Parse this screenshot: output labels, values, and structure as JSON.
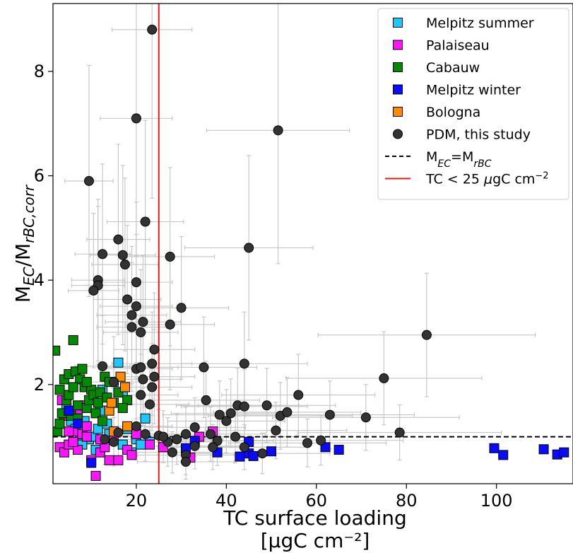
{
  "chart_data": {
    "type": "scatter",
    "xlabel_line1": "TC surface loading",
    "xlabel_line2": "[μgC cm⁻²]",
    "ylabel": "M_EC/M_rBC,corr",
    "xlim": [
      1.5,
      117
    ],
    "ylim": [
      0.1,
      9.3
    ],
    "xticks": [
      "20",
      "40",
      "60",
      "80",
      "100"
    ],
    "xtick_values": [
      20,
      40,
      60,
      80,
      100
    ],
    "yticks": [
      "2",
      "4",
      "6",
      "8"
    ],
    "ytick_values": [
      2,
      4,
      6,
      8
    ],
    "grid": false,
    "legend_position": "top-right",
    "reference_lines": {
      "ratio_one": {
        "y": 1.0,
        "label": "M_EC=M_rBC",
        "style": "dashed",
        "color": "#000000"
      },
      "tc_threshold": {
        "x": 25,
        "label": "TC < 25 μgC cm⁻²",
        "style": "solid",
        "color": "#e31a1c"
      }
    },
    "series": [
      {
        "name": "Melpitz summer",
        "marker": "square",
        "color": "#1ec8ff",
        "points": [
          [
            4.5,
            1.55
          ],
          [
            5.5,
            1.3
          ],
          [
            6.5,
            1.15
          ],
          [
            7.5,
            1.0
          ],
          [
            8.5,
            1.3
          ],
          [
            9.5,
            0.95
          ],
          [
            10.5,
            1.0
          ],
          [
            11.5,
            1.15
          ],
          [
            12.5,
            1.9
          ],
          [
            13.5,
            1.25
          ],
          [
            15,
            2.05
          ],
          [
            16,
            2.42
          ],
          [
            17,
            1.85
          ],
          [
            18,
            1.15
          ],
          [
            19,
            0.7
          ],
          [
            20,
            0.95
          ],
          [
            21,
            0.85
          ],
          [
            22,
            1.35
          ],
          [
            8,
            0.85
          ],
          [
            11,
            0.75
          ],
          [
            14,
            1.05
          ],
          [
            17,
            0.85
          ],
          [
            23,
            0.9
          ],
          [
            12,
            1.5
          ]
        ]
      },
      {
        "name": "Palaiseau",
        "marker": "square",
        "color": "#ff14ff",
        "points": [
          [
            3,
            0.8
          ],
          [
            4,
            0.7
          ],
          [
            5,
            0.85
          ],
          [
            6,
            1.1
          ],
          [
            7,
            0.75
          ],
          [
            8,
            1.05
          ],
          [
            9,
            1.0
          ],
          [
            10,
            0.55
          ],
          [
            11,
            0.25
          ],
          [
            12,
            0.7
          ],
          [
            13,
            0.8
          ],
          [
            14,
            0.55
          ],
          [
            15,
            0.95
          ],
          [
            18,
            0.75
          ],
          [
            20,
            1.05
          ],
          [
            23,
            0.85
          ],
          [
            26,
            0.8
          ],
          [
            32,
            0.6
          ],
          [
            34,
            1.0
          ],
          [
            37,
            1.1
          ],
          [
            6,
            0.9
          ],
          [
            9,
            1.2
          ],
          [
            4,
            1.4
          ],
          [
            7,
            1.45
          ],
          [
            5,
            1.1
          ],
          [
            19,
            0.65
          ],
          [
            3.5,
            1.7
          ],
          [
            8.5,
            1.6
          ],
          [
            12,
            0.95
          ],
          [
            16,
            0.55
          ]
        ]
      },
      {
        "name": "Cabauw",
        "marker": "square",
        "color": "#008a00",
        "points": [
          [
            2,
            2.65
          ],
          [
            2.5,
            1.1
          ],
          [
            3,
            1.9
          ],
          [
            3.5,
            1.45
          ],
          [
            4,
            2.1
          ],
          [
            4.5,
            1.7
          ],
          [
            5,
            2.2
          ],
          [
            5.5,
            1.4
          ],
          [
            6,
            2.85
          ],
          [
            6.5,
            2.25
          ],
          [
            7,
            1.6
          ],
          [
            7.5,
            2.1
          ],
          [
            8,
            2.3
          ],
          [
            8.5,
            1.95
          ],
          [
            9,
            1.55
          ],
          [
            9.5,
            1.7
          ],
          [
            10,
            1.9
          ],
          [
            10.5,
            1.8
          ],
          [
            11,
            1.45
          ],
          [
            11.5,
            1.65
          ],
          [
            12,
            1.85
          ],
          [
            13,
            2.15
          ],
          [
            13.5,
            1.75
          ],
          [
            14,
            2.05
          ],
          [
            15,
            1.65
          ],
          [
            16,
            1.85
          ],
          [
            18,
            1.7
          ],
          [
            5,
            1.8
          ],
          [
            7,
            1.35
          ],
          [
            9,
            2.05
          ],
          [
            3,
            1.25
          ],
          [
            12.5,
            1.3
          ],
          [
            17,
            1.55
          ],
          [
            6,
            1.95
          ]
        ]
      },
      {
        "name": "Melpitz winter",
        "marker": "square",
        "color": "#0a0aff",
        "points": [
          [
            31,
            0.78
          ],
          [
            33,
            0.92
          ],
          [
            38,
            0.7
          ],
          [
            43,
            0.62
          ],
          [
            45,
            0.68
          ],
          [
            45,
            0.9
          ],
          [
            46,
            0.63
          ],
          [
            50,
            0.72
          ],
          [
            62,
            0.8
          ],
          [
            65,
            0.75
          ],
          [
            99.5,
            0.78
          ],
          [
            101.5,
            0.65
          ],
          [
            110.5,
            0.76
          ],
          [
            113.5,
            0.66
          ],
          [
            115,
            0.7
          ],
          [
            5,
            1.5
          ],
          [
            10,
            0.5
          ],
          [
            7,
            1.25
          ]
        ]
      },
      {
        "name": "Bologna",
        "marker": "square",
        "color": "#ff8c00",
        "points": [
          [
            14,
            1.5
          ],
          [
            15,
            1.1
          ],
          [
            16.5,
            2.15
          ],
          [
            17.5,
            1.95
          ],
          [
            18,
            1.2
          ],
          [
            14.5,
            1.65
          ]
        ]
      },
      {
        "name": "PDM, this study",
        "marker": "circle",
        "color": "#333333",
        "points": [
          [
            23.5,
            8.8
          ],
          [
            20,
            7.1
          ],
          [
            51.5,
            6.87
          ],
          [
            9.5,
            5.9
          ],
          [
            22,
            5.12
          ],
          [
            16,
            4.78
          ],
          [
            12.5,
            4.5
          ],
          [
            17,
            4.48
          ],
          [
            45,
            4.62
          ],
          [
            27.5,
            4.45
          ],
          [
            17.5,
            4.3
          ],
          [
            11.5,
            4.0
          ],
          [
            11.5,
            3.9
          ],
          [
            10.5,
            3.8
          ],
          [
            20,
            3.96
          ],
          [
            18,
            3.63
          ],
          [
            20,
            3.5
          ],
          [
            30,
            3.47
          ],
          [
            19,
            3.33
          ],
          [
            21.5,
            3.2
          ],
          [
            19,
            3.1
          ],
          [
            21,
            3.0
          ],
          [
            24,
            2.67
          ],
          [
            27.5,
            3.15
          ],
          [
            20,
            2.3
          ],
          [
            21,
            2.33
          ],
          [
            23.5,
            2.4
          ],
          [
            24,
            2.15
          ],
          [
            21.5,
            2.1
          ],
          [
            35,
            2.33
          ],
          [
            44,
            2.4
          ],
          [
            84.5,
            2.95
          ],
          [
            75,
            2.12
          ],
          [
            12.5,
            2.35
          ],
          [
            15,
            2.05
          ],
          [
            21,
            1.8
          ],
          [
            23,
            1.62
          ],
          [
            23.5,
            1.95
          ],
          [
            35.5,
            1.7
          ],
          [
            38.5,
            1.42
          ],
          [
            41,
            1.45
          ],
          [
            42.5,
            1.6
          ],
          [
            44,
            1.58
          ],
          [
            49,
            1.6
          ],
          [
            52,
            1.4
          ],
          [
            53.5,
            1.47
          ],
          [
            56,
            1.8
          ],
          [
            63,
            1.42
          ],
          [
            71,
            1.37
          ],
          [
            78.5,
            1.08
          ],
          [
            40,
            1.3
          ],
          [
            42,
            1.0
          ],
          [
            36.5,
            1.05
          ],
          [
            38,
            0.92
          ],
          [
            33,
            1.18
          ],
          [
            31,
            1.05
          ],
          [
            29,
            0.95
          ],
          [
            28,
            0.7
          ],
          [
            31,
            0.65
          ],
          [
            27,
            0.9
          ],
          [
            33,
            0.82
          ],
          [
            25,
            1.02
          ],
          [
            26,
            1.0
          ],
          [
            37,
            0.8
          ],
          [
            44,
            0.8
          ],
          [
            48,
            0.68
          ],
          [
            51,
            1.12
          ],
          [
            58,
            0.88
          ],
          [
            61,
            0.93
          ],
          [
            31,
            0.52
          ],
          [
            20,
            1.2
          ],
          [
            16,
            1.08
          ],
          [
            15,
            0.9
          ],
          [
            13,
            0.95
          ],
          [
            22,
            1.05
          ]
        ]
      }
    ]
  }
}
